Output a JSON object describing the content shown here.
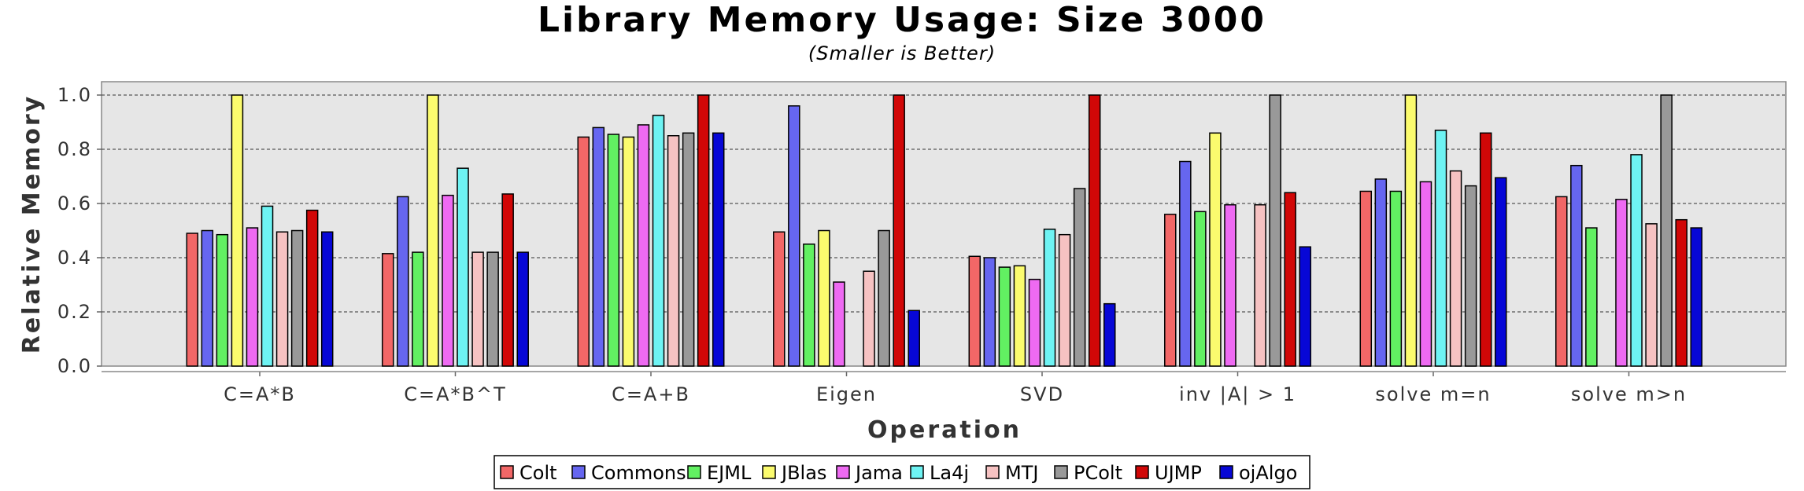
{
  "chart_data": {
    "type": "bar",
    "title": "Library Memory Usage: Size 3000",
    "subtitle": "(Smaller is Better)",
    "xlabel": "Operation",
    "ylabel": "Relative Memory",
    "ylim": [
      0,
      1.05
    ],
    "yticks": [
      "0.0",
      "0.2",
      "0.4",
      "0.6",
      "0.8",
      "1.0"
    ],
    "grid": true,
    "legend_position": "bottom",
    "categories": [
      "C=A*B",
      "C=A*B^T",
      "C=A+B",
      "Eigen",
      "SVD",
      "inv |A| > 1",
      "solve m=n",
      "solve m>n"
    ],
    "series": [
      {
        "name": "Colt",
        "color": "#f26767",
        "values": [
          0.49,
          0.415,
          0.845,
          0.495,
          0.405,
          0.56,
          0.645,
          0.625
        ]
      },
      {
        "name": "Commons",
        "color": "#6666f0",
        "values": [
          0.5,
          0.625,
          0.88,
          0.96,
          0.4,
          0.755,
          0.69,
          0.74
        ]
      },
      {
        "name": "EJML",
        "color": "#62f062",
        "values": [
          0.485,
          0.42,
          0.855,
          0.45,
          0.365,
          0.57,
          0.645,
          0.51
        ]
      },
      {
        "name": "JBlas",
        "color": "#fbfb6e",
        "values": [
          1.0,
          1.0,
          0.845,
          0.5,
          0.37,
          0.86,
          1.0,
          null
        ]
      },
      {
        "name": "Jama",
        "color": "#ee6af2",
        "values": [
          0.51,
          0.63,
          0.89,
          0.31,
          0.32,
          0.595,
          0.68,
          0.615
        ]
      },
      {
        "name": "La4j",
        "color": "#6ef3f3",
        "values": [
          0.59,
          0.73,
          0.925,
          null,
          0.505,
          null,
          0.87,
          0.78
        ]
      },
      {
        "name": "MTJ",
        "color": "#f6c2c2",
        "values": [
          0.495,
          0.42,
          0.85,
          0.35,
          0.485,
          0.595,
          0.72,
          0.525
        ]
      },
      {
        "name": "PColt",
        "color": "#999999",
        "values": [
          0.5,
          0.42,
          0.86,
          0.5,
          0.655,
          1.0,
          0.665,
          1.0
        ]
      },
      {
        "name": "UJMP",
        "color": "#d10707",
        "values": [
          0.575,
          0.635,
          1.0,
          1.0,
          1.0,
          0.64,
          0.86,
          0.54
        ]
      },
      {
        "name": "ojAlgo",
        "color": "#0707d6",
        "values": [
          0.495,
          0.42,
          0.86,
          0.205,
          0.23,
          0.44,
          0.695,
          0.51
        ]
      }
    ]
  }
}
